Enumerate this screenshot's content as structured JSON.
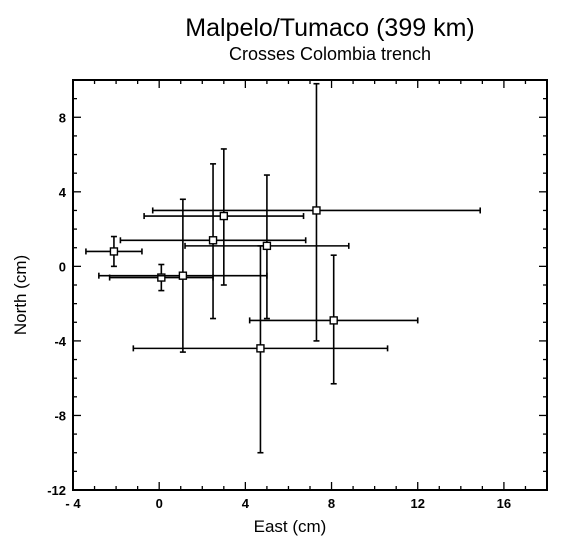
{
  "chart_data": {
    "type": "scatter",
    "title": "Malpelo/Tumaco (399 km)",
    "subtitle": "Crosses Colombia trench",
    "xlabel": "East (cm)",
    "ylabel": "North (cm)",
    "xlim": [
      -4,
      18
    ],
    "ylim": [
      -12,
      10
    ],
    "x_ticks": [
      -4,
      0,
      4,
      8,
      12,
      16
    ],
    "x_tick_labels": [
      "- 4",
      "0",
      "4",
      "8",
      "12",
      "16"
    ],
    "y_ticks": [
      -12,
      -8,
      -4,
      0,
      4,
      8
    ],
    "y_tick_labels": [
      "-12",
      "-8",
      "-4",
      "0",
      "4",
      "8"
    ],
    "grid": false,
    "points": [
      {
        "x": 7.3,
        "y": 3.0,
        "xerr": [
          7.6,
          7.6
        ],
        "yerr": [
          7.0,
          6.8
        ]
      },
      {
        "x": 3.0,
        "y": 2.7,
        "xerr": [
          3.7,
          3.7
        ],
        "yerr": [
          3.7,
          3.6
        ]
      },
      {
        "x": 2.5,
        "y": 1.4,
        "xerr": [
          4.3,
          4.3
        ],
        "yerr": [
          4.2,
          4.1
        ]
      },
      {
        "x": 5.0,
        "y": 1.1,
        "xerr": [
          3.8,
          3.8
        ],
        "yerr": [
          3.9,
          3.8
        ]
      },
      {
        "x": -2.1,
        "y": 0.8,
        "xerr": [
          1.3,
          1.3
        ],
        "yerr": [
          0.8,
          0.8
        ]
      },
      {
        "x": 0.1,
        "y": -0.6,
        "xerr": [
          2.4,
          2.4
        ],
        "yerr": [
          0.7,
          0.7
        ]
      },
      {
        "x": 1.1,
        "y": -0.5,
        "xerr": [
          3.9,
          3.9
        ],
        "yerr": [
          4.1,
          4.1
        ]
      },
      {
        "x": 8.1,
        "y": -2.9,
        "xerr": [
          3.9,
          3.9
        ],
        "yerr": [
          3.4,
          3.5
        ]
      },
      {
        "x": 4.7,
        "y": -4.4,
        "xerr": [
          5.9,
          5.9
        ],
        "yerr": [
          5.6,
          5.5
        ]
      }
    ]
  }
}
